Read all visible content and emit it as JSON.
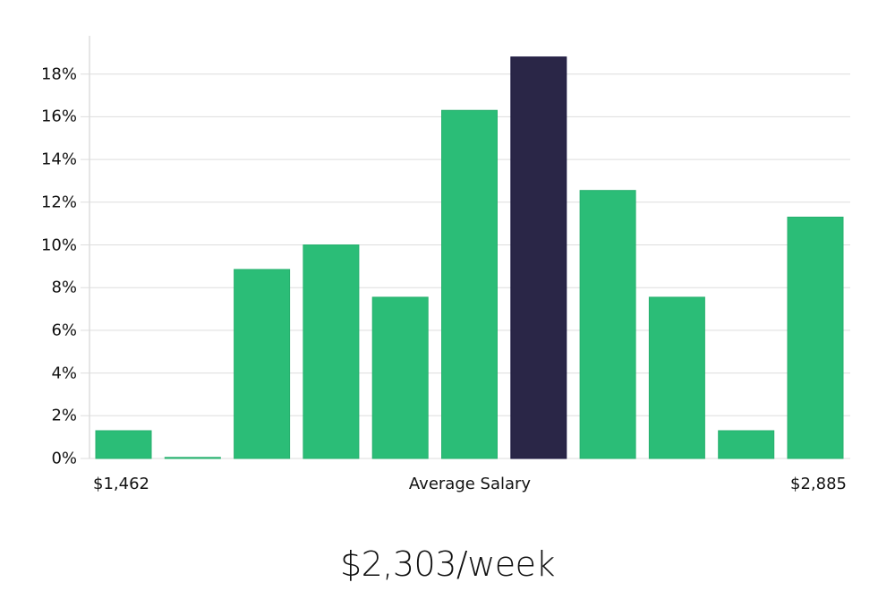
{
  "chart_data": {
    "type": "bar",
    "title": "",
    "xlabel": "Average Salary",
    "ylabel": "",
    "x_min_label": "$1,462",
    "x_max_label": "$2,885",
    "categories": [
      "bin1",
      "bin2",
      "bin3",
      "bin4",
      "bin5",
      "bin6",
      "bin7",
      "bin8",
      "bin9",
      "bin10",
      "bin11"
    ],
    "values": [
      1.3,
      0.05,
      8.85,
      10.0,
      7.55,
      16.3,
      18.8,
      12.55,
      7.55,
      1.3,
      11.3
    ],
    "highlight_index": 6,
    "ylim": [
      0,
      19.8
    ],
    "yticks": [
      "0%",
      "2%",
      "4%",
      "6%",
      "8%",
      "10%",
      "12%",
      "14%",
      "16%",
      "18%"
    ],
    "grid": true,
    "colors": {
      "bar": "#2bbd77",
      "highlight": "#2a2647",
      "highlight_border": "#1c1840",
      "grid": "#dddddd",
      "axis": "#cccccc"
    }
  },
  "summary": {
    "value": "$2,303/week"
  }
}
